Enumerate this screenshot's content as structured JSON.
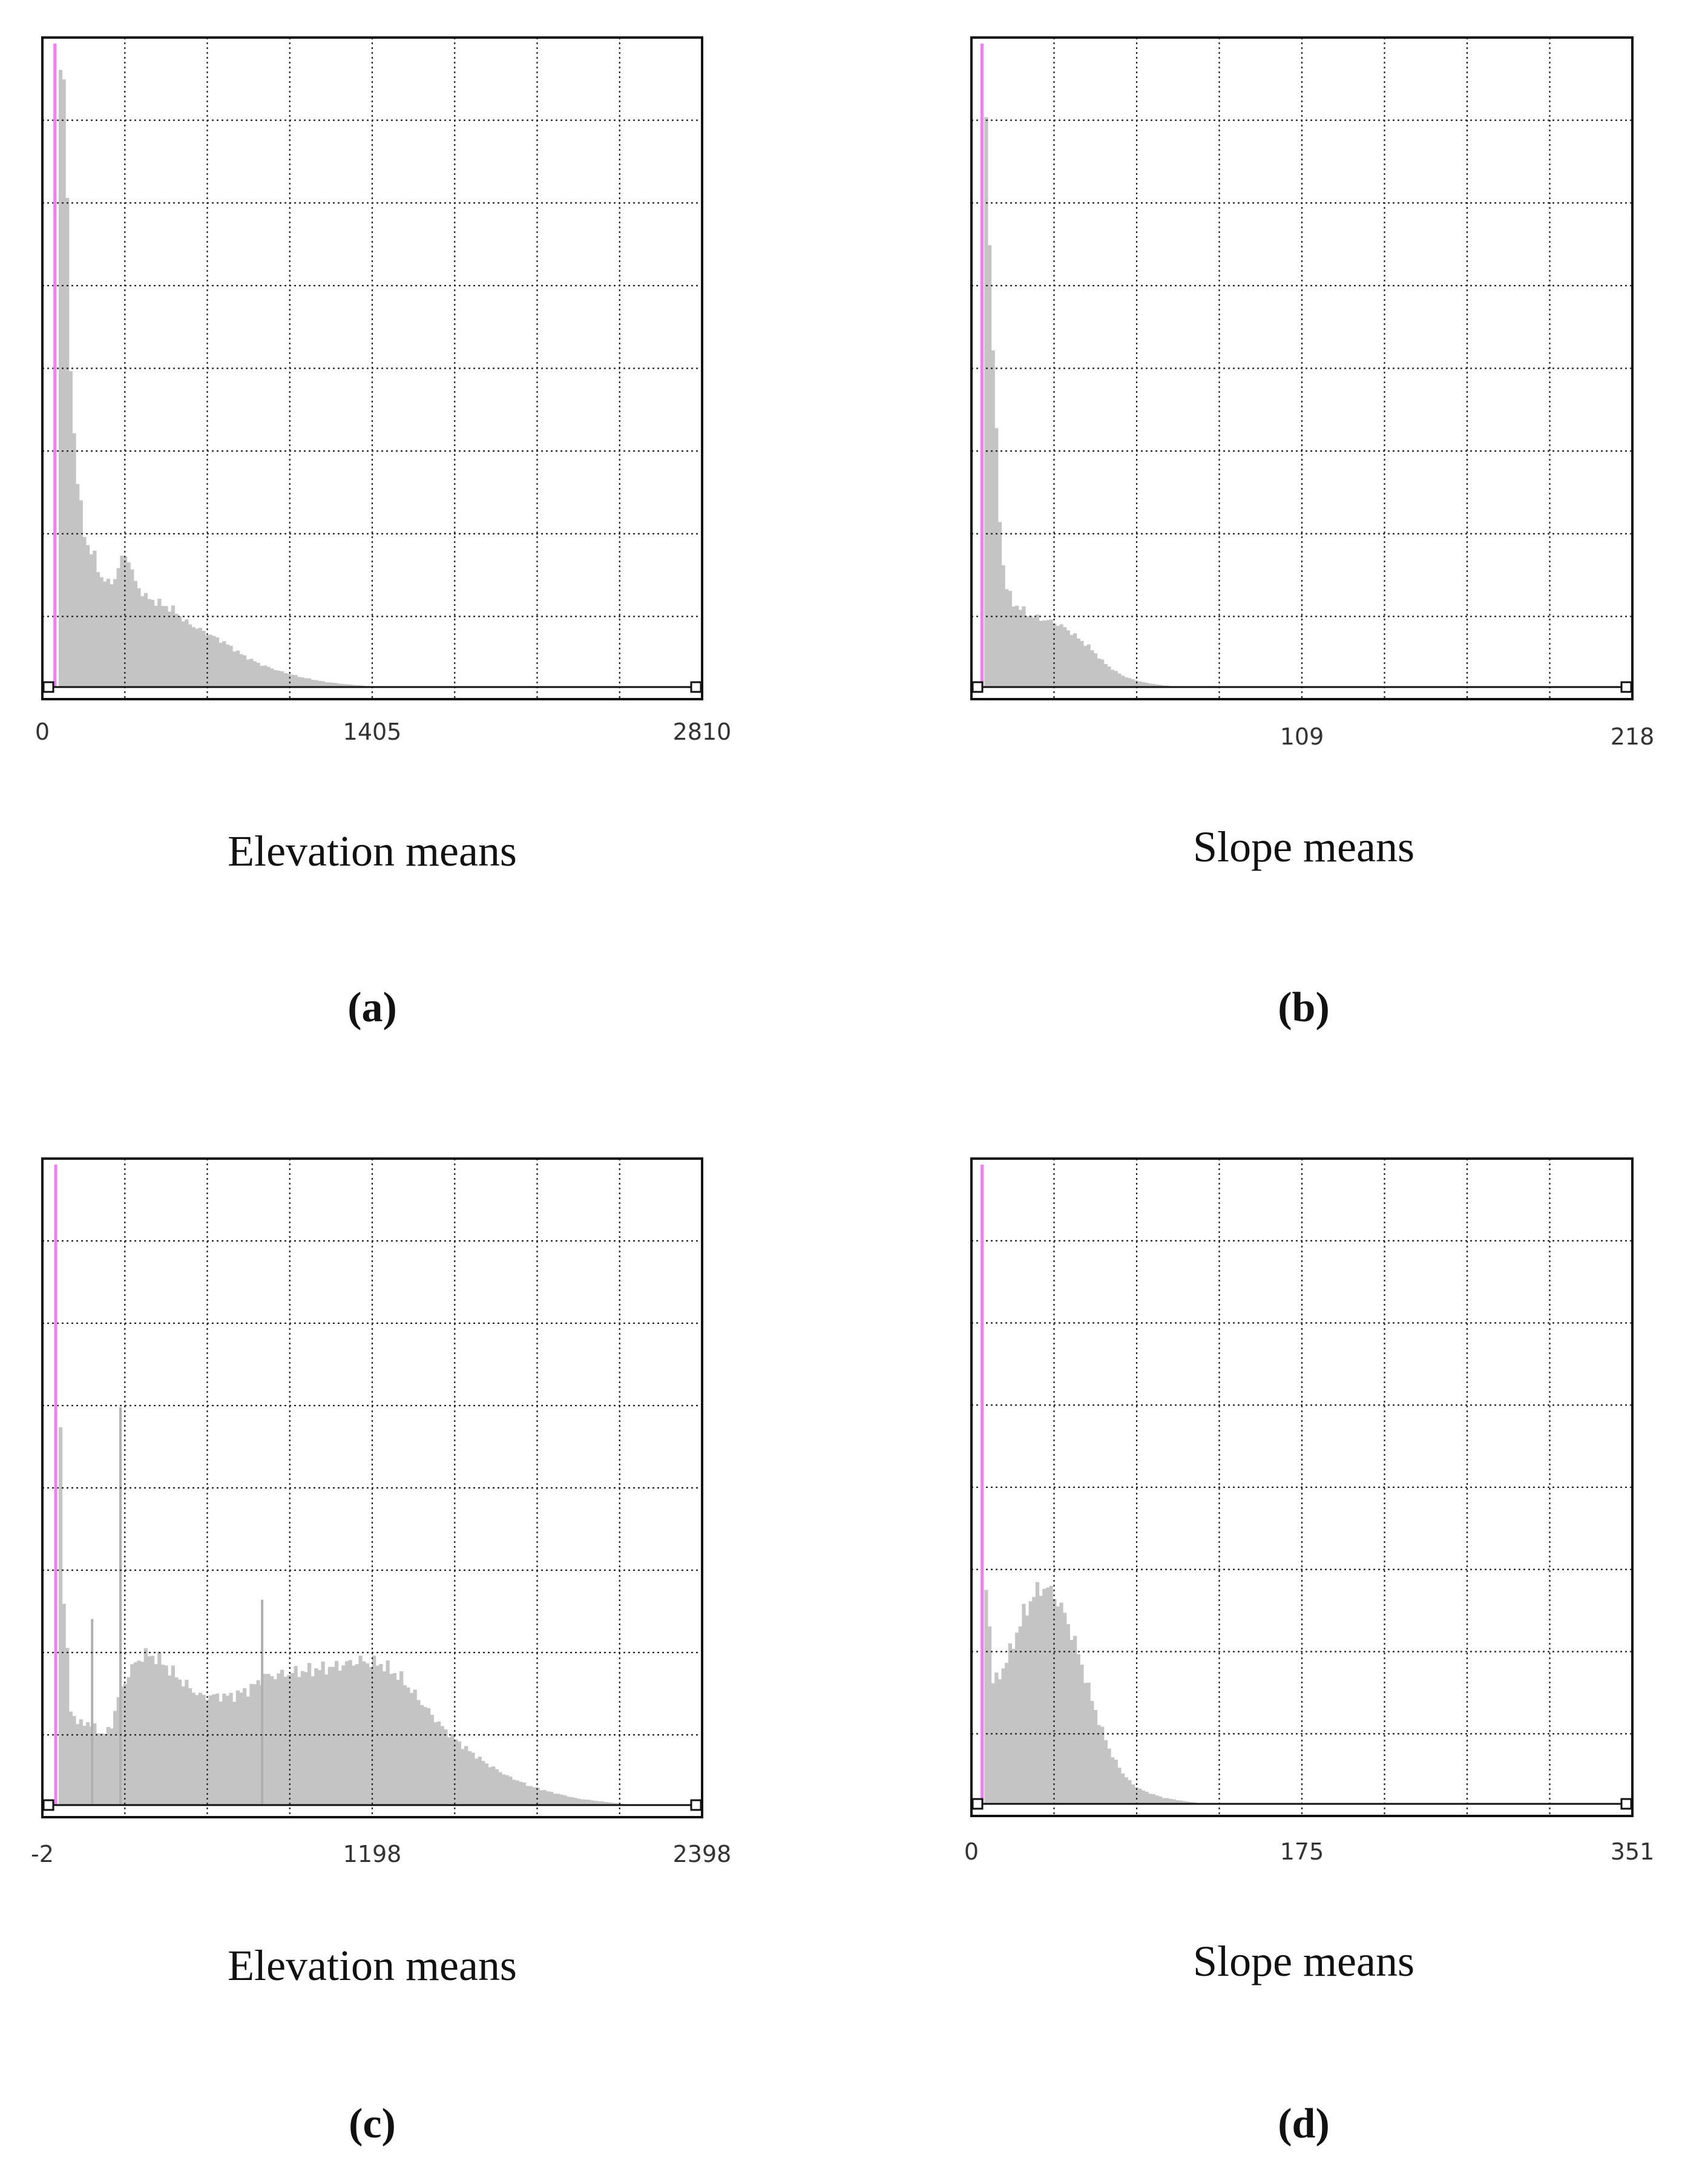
{
  "chart_data": [
    {
      "type": "bar",
      "panel_label": "(a)",
      "caption": "Elevation means",
      "xlim": [
        0,
        2810
      ],
      "xticks": [
        "0",
        "1405",
        "2810"
      ],
      "grid": true,
      "grid_lines": {
        "vertical": 8,
        "horizontal": 8
      },
      "marker_x": 28,
      "profile": [
        [
          40,
          0.99
        ],
        [
          70,
          0.95
        ],
        [
          90,
          0.55
        ],
        [
          110,
          0.4
        ],
        [
          130,
          0.3
        ],
        [
          150,
          0.25
        ],
        [
          170,
          0.22
        ],
        [
          200,
          0.2
        ],
        [
          230,
          0.17
        ],
        [
          260,
          0.16
        ],
        [
          290,
          0.17
        ],
        [
          320,
          0.2
        ],
        [
          340,
          0.21
        ],
        [
          360,
          0.18
        ],
        [
          380,
          0.16
        ],
        [
          420,
          0.14
        ],
        [
          480,
          0.13
        ],
        [
          540,
          0.12
        ],
        [
          600,
          0.1
        ],
        [
          680,
          0.085
        ],
        [
          760,
          0.07
        ],
        [
          840,
          0.05
        ],
        [
          920,
          0.035
        ],
        [
          1000,
          0.025
        ],
        [
          1100,
          0.015
        ],
        [
          1200,
          0.008
        ],
        [
          1300,
          0.004
        ],
        [
          1400,
          0.001
        ],
        [
          1500,
          0
        ]
      ]
    },
    {
      "type": "bar",
      "panel_label": "(b)",
      "caption": "Slope means",
      "xlim": [
        0,
        218
      ],
      "xticks": [
        "109",
        "218"
      ],
      "grid": true,
      "grid_lines": {
        "vertical": 8,
        "horizontal": 8
      },
      "marker_x": 1.5,
      "profile": [
        [
          2,
          0.98
        ],
        [
          3,
          0.88
        ],
        [
          4,
          0.7
        ],
        [
          5,
          0.55
        ],
        [
          6,
          0.42
        ],
        [
          7,
          0.3
        ],
        [
          8,
          0.22
        ],
        [
          9,
          0.17
        ],
        [
          10,
          0.15
        ],
        [
          12,
          0.13
        ],
        [
          15,
          0.12
        ],
        [
          18,
          0.11
        ],
        [
          22,
          0.105
        ],
        [
          26,
          0.1
        ],
        [
          30,
          0.09
        ],
        [
          34,
          0.075
        ],
        [
          38,
          0.06
        ],
        [
          42,
          0.04
        ],
        [
          46,
          0.025
        ],
        [
          50,
          0.015
        ],
        [
          55,
          0.008
        ],
        [
          60,
          0.004
        ],
        [
          66,
          0.001
        ],
        [
          70,
          0
        ]
      ]
    },
    {
      "type": "bar",
      "panel_label": "(c)",
      "caption": "Elevation means",
      "xlim": [
        -2,
        2398
      ],
      "xticks": [
        "-2",
        "1198",
        "2398"
      ],
      "grid": true,
      "grid_lines": {
        "vertical": 8,
        "horizontal": 8
      },
      "marker_x": 25,
      "profile": [
        [
          30,
          0.99
        ],
        [
          50,
          0.35
        ],
        [
          80,
          0.15
        ],
        [
          110,
          0.125
        ],
        [
          140,
          0.13
        ],
        [
          170,
          0.12
        ],
        [
          200,
          0.11
        ],
        [
          230,
          0.12
        ],
        [
          250,
          0.16
        ],
        [
          300,
          0.21
        ],
        [
          350,
          0.235
        ],
        [
          400,
          0.23
        ],
        [
          450,
          0.21
        ],
        [
          500,
          0.19
        ],
        [
          560,
          0.17
        ],
        [
          620,
          0.17
        ],
        [
          680,
          0.17
        ],
        [
          740,
          0.18
        ],
        [
          800,
          0.2
        ],
        [
          880,
          0.205
        ],
        [
          960,
          0.21
        ],
        [
          1050,
          0.215
        ],
        [
          1150,
          0.225
        ],
        [
          1230,
          0.22
        ],
        [
          1300,
          0.2
        ],
        [
          1380,
          0.16
        ],
        [
          1460,
          0.12
        ],
        [
          1540,
          0.09
        ],
        [
          1620,
          0.065
        ],
        [
          1700,
          0.045
        ],
        [
          1780,
          0.03
        ],
        [
          1860,
          0.02
        ],
        [
          1960,
          0.01
        ],
        [
          2060,
          0.005
        ],
        [
          2160,
          0
        ],
        [
          2398,
          0
        ]
      ],
      "spikes": [
        [
          160,
          0.29
        ],
        [
          265,
          0.62
        ],
        [
          790,
          0.32
        ]
      ]
    },
    {
      "type": "bar",
      "panel_label": "(d)",
      "caption": "Slope means",
      "xlim": [
        0,
        351
      ],
      "xticks": [
        "0",
        "175",
        "351"
      ],
      "grid": true,
      "grid_lines": {
        "vertical": 8,
        "horizontal": 8
      },
      "marker_x": 2.5,
      "profile": [
        [
          3,
          0.2
        ],
        [
          5,
          0.37
        ],
        [
          8,
          0.19
        ],
        [
          12,
          0.2
        ],
        [
          18,
          0.24
        ],
        [
          24,
          0.29
        ],
        [
          30,
          0.325
        ],
        [
          36,
          0.34
        ],
        [
          42,
          0.325
        ],
        [
          48,
          0.29
        ],
        [
          54,
          0.24
        ],
        [
          60,
          0.18
        ],
        [
          66,
          0.125
        ],
        [
          72,
          0.08
        ],
        [
          78,
          0.05
        ],
        [
          84,
          0.03
        ],
        [
          90,
          0.02
        ],
        [
          100,
          0.01
        ],
        [
          110,
          0.005
        ],
        [
          120,
          0.001
        ],
        [
          135,
          0
        ],
        [
          351,
          0
        ]
      ]
    }
  ]
}
